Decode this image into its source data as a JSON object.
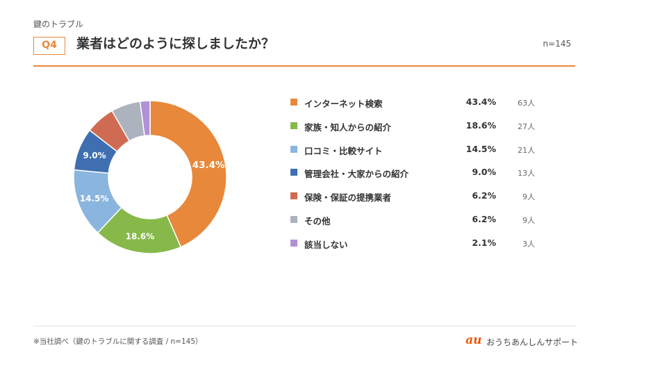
{
  "header": {
    "category": "鍵のトラブル",
    "question_badge": "Q4",
    "title": "業者はどのように探しましたか？",
    "sample_size": "n=145"
  },
  "chart_data": {
    "type": "pie",
    "donut": true,
    "legend_position": "right",
    "slices": [
      {
        "label": "インターネット検索",
        "value": 43.4,
        "value_label": "43.4%",
        "count": "63人",
        "color": "#e8883a",
        "show_label": true
      },
      {
        "label": "家族・知人からの紹介",
        "value": 18.6,
        "value_label": "18.6%",
        "count": "27人",
        "color": "#86b94a",
        "show_label": true
      },
      {
        "label": "口コミ・比較サイト",
        "value": 14.5,
        "value_label": "14.5%",
        "count": "21人",
        "color": "#8ab5de",
        "show_label": true
      },
      {
        "label": "管理会社・大家からの紹介",
        "value": 9.0,
        "value_label": "9.0%",
        "count": "13人",
        "color": "#3f6fb1",
        "show_label": true
      },
      {
        "label": "保険・保証の提携業者",
        "value": 6.2,
        "value_label": "6.2%",
        "count": "9人",
        "color": "#cf6b52",
        "show_label": false
      },
      {
        "label": "その他",
        "value": 6.2,
        "value_label": "6.2%",
        "count": "9人",
        "color": "#acb3bf",
        "show_label": false
      },
      {
        "label": "該当しない",
        "value": 2.1,
        "value_label": "2.1%",
        "count": "3人",
        "color": "#b191d6",
        "show_label": false
      }
    ]
  },
  "footer": {
    "footnote": "※当社調べ（鍵のトラブルに関する調査 / n=145）",
    "brand_mark": "au",
    "brand_name": "おうちあんしんサポート"
  }
}
